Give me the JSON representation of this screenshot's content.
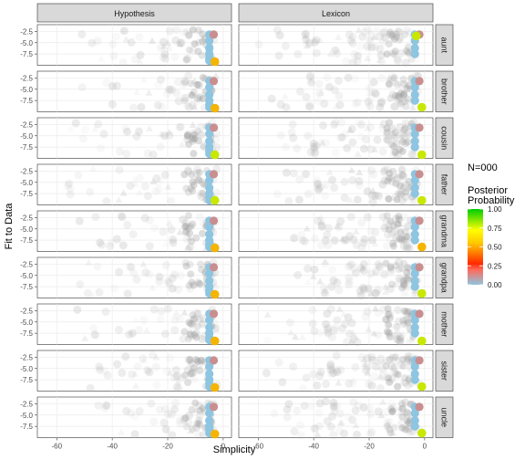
{
  "chart_data": {
    "type": "scatter",
    "facet_columns": [
      "Hypothesis",
      "Lexicon"
    ],
    "facet_rows": [
      "aunt",
      "brother",
      "cousin",
      "father",
      "grandma",
      "grandpa",
      "mother",
      "sister",
      "uncle"
    ],
    "xlabel": "Simplicity",
    "ylabel": "Fit to Data",
    "xlim": [
      -67,
      3
    ],
    "x_ticks": [
      -60,
      -40,
      -20,
      0
    ],
    "y_ticks": [
      -2.5,
      -5.0,
      -7.5
    ],
    "x_tick_labels": [
      "-60",
      "-40",
      "-20",
      "0"
    ],
    "y_tick_labels": [
      "-2.5",
      "-5.0",
      "-7.5"
    ],
    "grid": true,
    "annotation": "N=000",
    "legend": {
      "title_lines": [
        "Posterior",
        "Probability"
      ],
      "position": "right",
      "colorbar_ticks": [
        0.0,
        0.25,
        0.5,
        0.75,
        1.0
      ],
      "colorbar_tick_labels": [
        "0.00",
        "0.25",
        "0.50",
        "0.75",
        "1.00"
      ],
      "colors": [
        "#8ec5e0",
        "#ff2a00",
        "#ffff00",
        "#00cc00"
      ]
    },
    "series_colors": {
      "background": "#c8c8c8",
      "low": "#8ec5e0",
      "mid": "#c98f90",
      "high": "#f5b400",
      "top": "#c8e800"
    },
    "highlighted_points": [
      {
        "row": "aunt",
        "column": "Hypothesis",
        "x": -3,
        "y": -9.2,
        "posterior": 0.55
      },
      {
        "row": "aunt",
        "column": "Lexicon",
        "x": -3,
        "y": -3.5,
        "posterior": 0.6
      },
      {
        "row": "brother",
        "column": "Hypothesis",
        "x": -3,
        "y": -9.2,
        "posterior": 0.55
      },
      {
        "row": "brother",
        "column": "Lexicon",
        "x": -1,
        "y": -9.0,
        "posterior": 0.7
      },
      {
        "row": "cousin",
        "column": "Hypothesis",
        "x": -3,
        "y": -9.2,
        "posterior": 0.65
      },
      {
        "row": "cousin",
        "column": "Lexicon",
        "x": -1,
        "y": -9.2,
        "posterior": 0.6
      },
      {
        "row": "father",
        "column": "Hypothesis",
        "x": -3,
        "y": -9.0,
        "posterior": 0.6
      },
      {
        "row": "father",
        "column": "Lexicon",
        "x": -1,
        "y": -9.0,
        "posterior": 0.65
      },
      {
        "row": "grandma",
        "column": "Hypothesis",
        "x": -3,
        "y": -9.2,
        "posterior": 0.55
      },
      {
        "row": "grandma",
        "column": "Lexicon",
        "x": -1,
        "y": -9.0,
        "posterior": 0.55
      },
      {
        "row": "grandpa",
        "column": "Hypothesis",
        "x": -3,
        "y": -9.2,
        "posterior": 0.55
      },
      {
        "row": "grandpa",
        "column": "Lexicon",
        "x": -1,
        "y": -9.0,
        "posterior": 0.6
      },
      {
        "row": "mother",
        "column": "Hypothesis",
        "x": -3,
        "y": -9.2,
        "posterior": 0.55
      },
      {
        "row": "mother",
        "column": "Lexicon",
        "x": -1,
        "y": -9.2,
        "posterior": 0.6
      },
      {
        "row": "sister",
        "column": "Hypothesis",
        "x": -3,
        "y": -9.2,
        "posterior": 0.55
      },
      {
        "row": "sister",
        "column": "Lexicon",
        "x": -1,
        "y": -9.0,
        "posterior": 0.6
      },
      {
        "row": "uncle",
        "column": "Hypothesis",
        "x": -3,
        "y": -9.2,
        "posterior": 0.55
      },
      {
        "row": "uncle",
        "column": "Lexicon",
        "x": -1,
        "y": -9.0,
        "posterior": 0.65
      }
    ]
  }
}
